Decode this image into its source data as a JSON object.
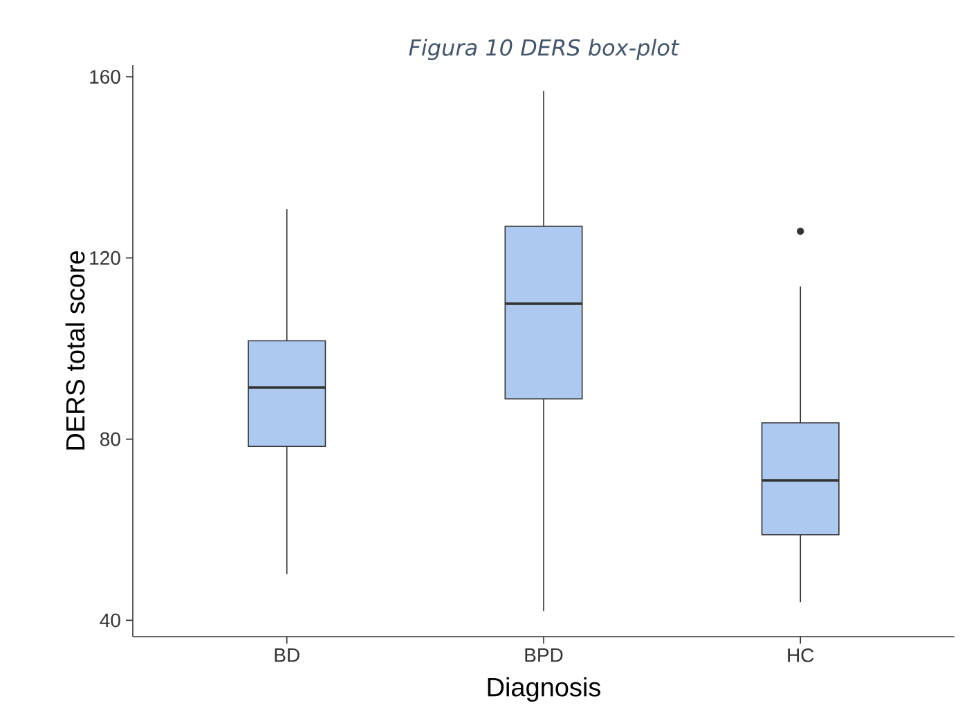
{
  "chart_data": {
    "type": "box",
    "title": "Figura 10 DERS box-plot",
    "xlabel": "Diagnosis",
    "ylabel": "DERS total score",
    "categories": [
      "BD",
      "BPD",
      "HC"
    ],
    "boxes": [
      {
        "low": 50.2,
        "q1": 78.4,
        "median": 91.4,
        "q3": 101.7,
        "high": 130.8
      },
      {
        "low": 42,
        "q1": 88.9,
        "median": 109.9,
        "q3": 127,
        "high": 156.9
      },
      {
        "low": 44,
        "q1": 58.9,
        "median": 70.9,
        "q3": 83.6,
        "high": 113.7,
        "outliers": [
          125.9
        ]
      }
    ],
    "color": "#aec9f0",
    "ylim": [
      36.4,
      162.6
    ],
    "yticks": [
      40,
      80,
      120,
      160
    ]
  }
}
